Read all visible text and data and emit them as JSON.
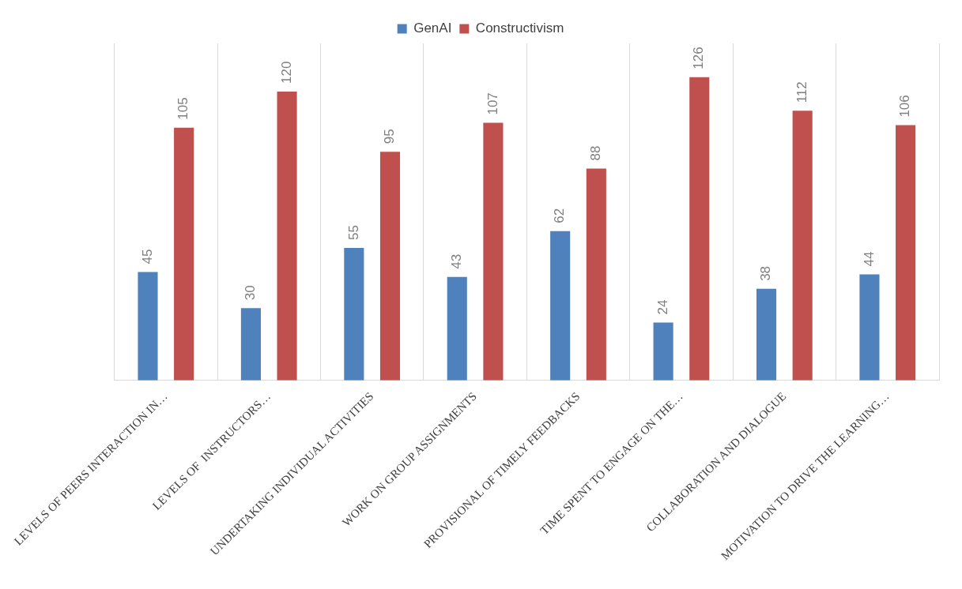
{
  "chart_data": {
    "type": "bar",
    "categories": [
      "LEVELS OF PEERS INTERACTION IN…",
      "LEVELS OF  INSTRUCTORS…",
      "UNDERTAKING INDIVIDUAL ACTIVITIES",
      "WORK ON GROUP ASSIGNMENTS",
      "PROVISIONAL OF TIMELY FEEDBACKS",
      "TIME SPENT TO ENGAGE ON THE…",
      "COLLABORATION AND DIALOGUE",
      "MOTIVATION TO DRIVE THE LEARNING…"
    ],
    "series": [
      {
        "name": "GenAI",
        "color": "#4f81bd",
        "values": [
          45,
          30,
          55,
          43,
          62,
          24,
          38,
          44
        ]
      },
      {
        "name": "Constructivism",
        "color": "#c0504d",
        "values": [
          105,
          120,
          95,
          107,
          88,
          126,
          112,
          106
        ]
      }
    ],
    "data_labels": true,
    "grid": "x",
    "legend": "top"
  }
}
